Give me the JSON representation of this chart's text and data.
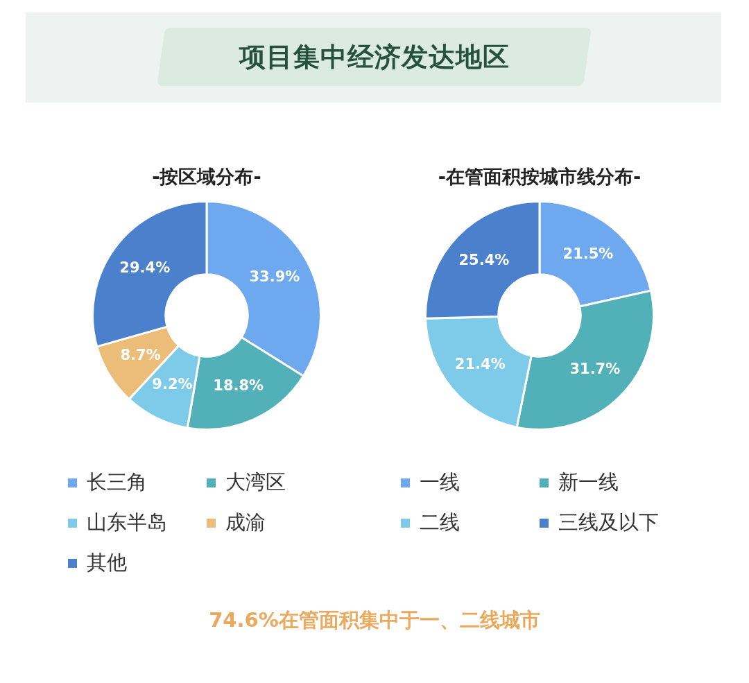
{
  "chart_data": [
    {
      "type": "donut",
      "title": "项目集中经济发达地区",
      "subtitle": "-按区域分布-",
      "categories": [
        "长三角",
        "大湾区",
        "山东半岛",
        "成渝",
        "其他"
      ],
      "values": [
        33.9,
        18.8,
        9.2,
        8.7,
        29.4
      ],
      "colors": [
        "#6ea8ee",
        "#52b0b8",
        "#7dcbe8",
        "#ecbd78",
        "#4a80cc"
      ],
      "value_labels": [
        "33.9%",
        "18.8%",
        "9.2%",
        "8.7%",
        "29.4%"
      ],
      "legend": "bottom"
    },
    {
      "type": "donut",
      "title": "-在管面积按城市线分布-",
      "categories": [
        "一线",
        "新一线",
        "二线",
        "三线及以下"
      ],
      "values": [
        21.5,
        31.7,
        21.4,
        25.4
      ],
      "colors": [
        "#6ea8ee",
        "#52b0b8",
        "#7dcbe8",
        "#4a80cc"
      ],
      "value_labels": [
        "21.5%",
        "31.7%",
        "21.4%",
        "25.4%"
      ],
      "legend": "bottom",
      "annotations": [
        "74.6%在管面积集中于一、二线城市"
      ]
    }
  ]
}
